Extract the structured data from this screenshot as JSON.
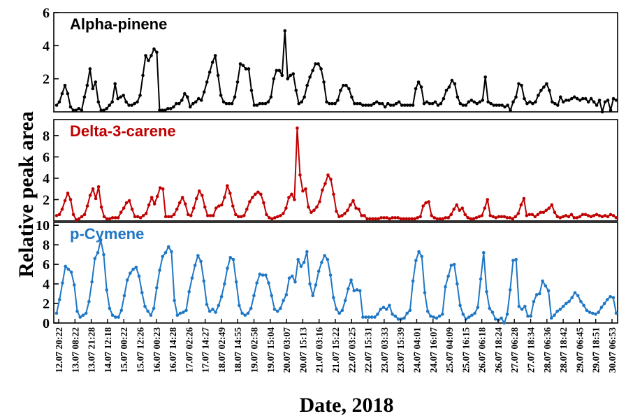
{
  "chart_data": {
    "type": "line",
    "xlabel": "Date, 2018",
    "ylabel": "Relative peak area",
    "x_tick_labels": [
      "12.07 20:22",
      "13.07 08:22",
      "13.07 21:28",
      "14.07 12:18",
      "15.07 00:22",
      "15.07 12:26",
      "16.07 00:23",
      "16.07 14:28",
      "17.07 02:26",
      "17.07 14:27",
      "18.07 02:49",
      "18.07 14:55",
      "19.07 02:58",
      "19.07 15:04",
      "20.07 03:07",
      "20.07 15:13",
      "21.07 03:16",
      "21.07 15:22",
      "22.07 03:25",
      "22.07 15:31",
      "23.07 03:33",
      "23.07 15:39",
      "24.07 04:01",
      "24.07 16:07",
      "25.07 04:09",
      "25.07 16:15",
      "26.07 06:18",
      "26.07 18:24",
      "27.07 06:28",
      "27.07 18:34",
      "28.07 06:36",
      "28.07 18:42",
      "29.07 06:45",
      "29.07 18:51",
      "30.07 06:53"
    ],
    "panels": [
      {
        "title": "Alpha-pinene",
        "color": "#000000",
        "ylim": [
          0,
          6
        ],
        "yticks": [
          2,
          4,
          6
        ],
        "values": [
          0.4,
          0.6,
          1.1,
          1.6,
          1.1,
          0.3,
          0.1,
          0.1,
          0.2,
          0.1,
          0.9,
          1.6,
          2.6,
          1.4,
          1.8,
          0.6,
          0.1,
          0.1,
          0.2,
          0.4,
          0.6,
          1.7,
          0.8,
          0.9,
          1.0,
          0.6,
          0.4,
          0.4,
          0.5,
          0.6,
          1.0,
          2.2,
          3.4,
          3.1,
          3.4,
          3.8,
          3.6,
          0.1,
          0.1,
          0.1,
          0.2,
          0.2,
          0.3,
          0.5,
          0.5,
          0.7,
          1.1,
          0.9,
          0.3,
          0.5,
          0.6,
          0.8,
          0.7,
          1.2,
          1.8,
          2.4,
          3.0,
          3.4,
          2.2,
          1.0,
          0.6,
          0.5,
          0.5,
          0.5,
          0.9,
          1.8,
          2.9,
          2.8,
          2.6,
          2.6,
          1.3,
          0.4,
          0.4,
          0.5,
          0.5,
          0.5,
          0.6,
          0.9,
          2.0,
          2.5,
          2.5,
          2.2,
          4.9,
          2.0,
          2.2,
          2.3,
          1.3,
          0.5,
          0.6,
          0.9,
          1.6,
          2.1,
          2.5,
          2.9,
          2.9,
          2.6,
          1.8,
          0.6,
          0.5,
          0.5,
          0.5,
          0.7,
          1.3,
          1.6,
          1.6,
          1.4,
          0.9,
          0.5,
          0.5,
          0.5,
          0.4,
          0.4,
          0.4,
          0.4,
          0.5,
          0.6,
          0.5,
          0.5,
          0.3,
          0.5,
          0.4,
          0.4,
          0.5,
          0.6,
          0.4,
          0.4,
          0.4,
          0.4,
          0.4,
          1.4,
          1.8,
          1.5,
          0.5,
          0.6,
          0.5,
          0.5,
          0.6,
          0.4,
          0.5,
          0.8,
          1.3,
          1.5,
          1.9,
          1.7,
          0.9,
          0.5,
          0.4,
          0.4,
          0.6,
          0.7,
          0.6,
          0.5,
          0.6,
          0.7,
          2.1,
          0.6,
          0.5,
          0.4,
          0.4,
          0.4,
          0.4,
          0.3,
          0.4,
          0.1,
          0.6,
          0.9,
          1.7,
          1.6,
          0.8,
          0.5,
          0.6,
          0.5,
          0.6,
          1.0,
          1.3,
          1.5,
          1.7,
          1.3,
          0.6,
          0.5,
          0.4,
          0.9,
          0.6,
          0.7,
          0.7,
          0.8,
          0.9,
          0.8,
          0.7,
          0.8,
          0.8,
          0.6,
          0.8,
          0.6,
          0.4,
          0.7,
          0.0,
          0.6,
          0.7,
          0.1,
          0.8,
          0.7
        ]
      },
      {
        "title": "Delta-3-carene",
        "color": "#c00000",
        "ylim": [
          0,
          9.5
        ],
        "yticks": [
          2,
          4,
          6,
          8
        ],
        "values": [
          0.5,
          0.6,
          1.1,
          1.9,
          2.6,
          2.0,
          0.6,
          0.1,
          0.2,
          0.4,
          0.6,
          1.4,
          2.4,
          3.0,
          2.1,
          3.2,
          1.3,
          0.4,
          0.2,
          0.2,
          0.3,
          0.3,
          0.3,
          0.8,
          1.2,
          1.7,
          1.9,
          1.1,
          0.4,
          0.4,
          0.3,
          0.5,
          0.7,
          1.5,
          2.2,
          1.6,
          2.3,
          3.1,
          3.0,
          0.4,
          0.4,
          0.4,
          0.6,
          1.1,
          1.7,
          2.2,
          1.6,
          0.6,
          0.5,
          1.2,
          2.1,
          2.8,
          2.4,
          1.3,
          0.5,
          0.5,
          0.5,
          1.2,
          1.4,
          1.5,
          2.2,
          3.3,
          2.6,
          1.4,
          0.6,
          0.4,
          0.4,
          0.5,
          1.1,
          1.8,
          2.2,
          2.5,
          2.7,
          2.5,
          1.7,
          0.6,
          0.3,
          0.2,
          0.3,
          0.4,
          0.5,
          0.7,
          1.2,
          2.2,
          2.5,
          2.0,
          8.7,
          4.3,
          2.8,
          3.0,
          1.3,
          0.8,
          1.0,
          1.3,
          1.8,
          2.9,
          3.5,
          4.3,
          3.9,
          2.5,
          0.9,
          0.4,
          0.5,
          0.7,
          1.0,
          1.5,
          1.9,
          1.2,
          1.1,
          0.5,
          0.5,
          0.2,
          0.2,
          0.2,
          0.2,
          0.2,
          0.3,
          0.3,
          0.3,
          0.2,
          0.3,
          0.3,
          0.3,
          0.2,
          0.2,
          0.2,
          0.2,
          0.2,
          0.2,
          0.3,
          0.4,
          1.4,
          1.7,
          1.8,
          0.5,
          0.3,
          0.2,
          0.2,
          0.2,
          0.3,
          0.3,
          0.6,
          1.1,
          1.5,
          1.0,
          1.2,
          0.6,
          0.3,
          0.2,
          0.2,
          0.3,
          0.4,
          0.5,
          1.2,
          2.0,
          0.5,
          0.4,
          0.3,
          0.4,
          0.4,
          0.4,
          0.3,
          0.3,
          0.2,
          0.4,
          0.7,
          1.5,
          2.1,
          0.5,
          0.6,
          0.6,
          0.4,
          0.6,
          0.8,
          0.8,
          1.0,
          1.2,
          1.5,
          0.8,
          0.4,
          0.3,
          0.4,
          0.5,
          0.4,
          0.6,
          0.3,
          0.3,
          0.4,
          0.6,
          0.6,
          0.5,
          0.4,
          0.5,
          0.6,
          0.5,
          0.4,
          0.5,
          0.4,
          0.6,
          0.5,
          0.3
        ]
      },
      {
        "title": "p-Cymene",
        "color": "#1f77c4",
        "ylim": [
          0,
          10.3
        ],
        "yticks": [
          0,
          2,
          4,
          6,
          8,
          10
        ],
        "values": [
          1.0,
          2.4,
          4.1,
          5.8,
          5.5,
          5.2,
          3.9,
          1.2,
          0.6,
          0.8,
          1.0,
          2.2,
          4.2,
          6.6,
          7.2,
          8.5,
          7.0,
          3.4,
          1.5,
          0.8,
          0.6,
          0.6,
          1.3,
          2.8,
          4.4,
          5.1,
          5.5,
          5.7,
          4.8,
          3.1,
          1.7,
          1.2,
          0.8,
          1.5,
          3.6,
          5.4,
          6.8,
          7.2,
          7.8,
          7.3,
          2.3,
          0.8,
          1.0,
          1.1,
          1.3,
          3.2,
          4.6,
          5.9,
          6.9,
          6.3,
          4.3,
          1.9,
          1.2,
          1.4,
          1.1,
          1.8,
          2.7,
          4.0,
          5.6,
          6.7,
          6.5,
          4.2,
          1.8,
          1.0,
          0.8,
          1.0,
          1.5,
          2.8,
          4.1,
          5.0,
          4.9,
          4.9,
          4.1,
          2.8,
          1.4,
          1.2,
          1.5,
          2.3,
          2.9,
          4.6,
          4.8,
          4.2,
          6.5,
          5.8,
          6.2,
          7.3,
          4.0,
          2.8,
          3.9,
          5.3,
          6.2,
          6.9,
          6.5,
          4.9,
          2.6,
          1.4,
          1.0,
          1.3,
          2.3,
          3.5,
          4.4,
          3.3,
          3.4,
          3.3,
          0.6,
          0.6,
          0.6,
          0.6,
          0.6,
          0.9,
          1.4,
          1.6,
          1.4,
          1.8,
          0.9,
          0.7,
          0.4,
          0.4,
          0.5,
          1.0,
          1.3,
          4.3,
          6.4,
          7.3,
          6.8,
          3.1,
          1.2,
          0.7,
          0.6,
          0.5,
          0.7,
          0.9,
          3.7,
          4.8,
          5.9,
          6.0,
          4.0,
          1.8,
          0.9,
          0.4,
          0.6,
          0.8,
          1.0,
          1.6,
          4.5,
          7.2,
          3.2,
          1.5,
          1.1,
          0.4,
          0.3,
          0.5,
          0.0,
          0.9,
          3.4,
          6.4,
          6.5,
          1.7,
          1.4,
          1.7,
          0.7,
          0.7,
          2.2,
          2.9,
          3.0,
          4.3,
          3.8,
          3.3,
          0.5,
          0.8,
          1.2,
          1.4,
          1.7,
          2.0,
          2.2,
          2.6,
          3.1,
          2.8,
          2.2,
          1.8,
          1.3,
          1.1,
          1.0,
          0.9,
          1.1,
          1.6,
          2.0,
          2.4,
          2.7,
          2.6,
          1.0
        ]
      }
    ]
  }
}
